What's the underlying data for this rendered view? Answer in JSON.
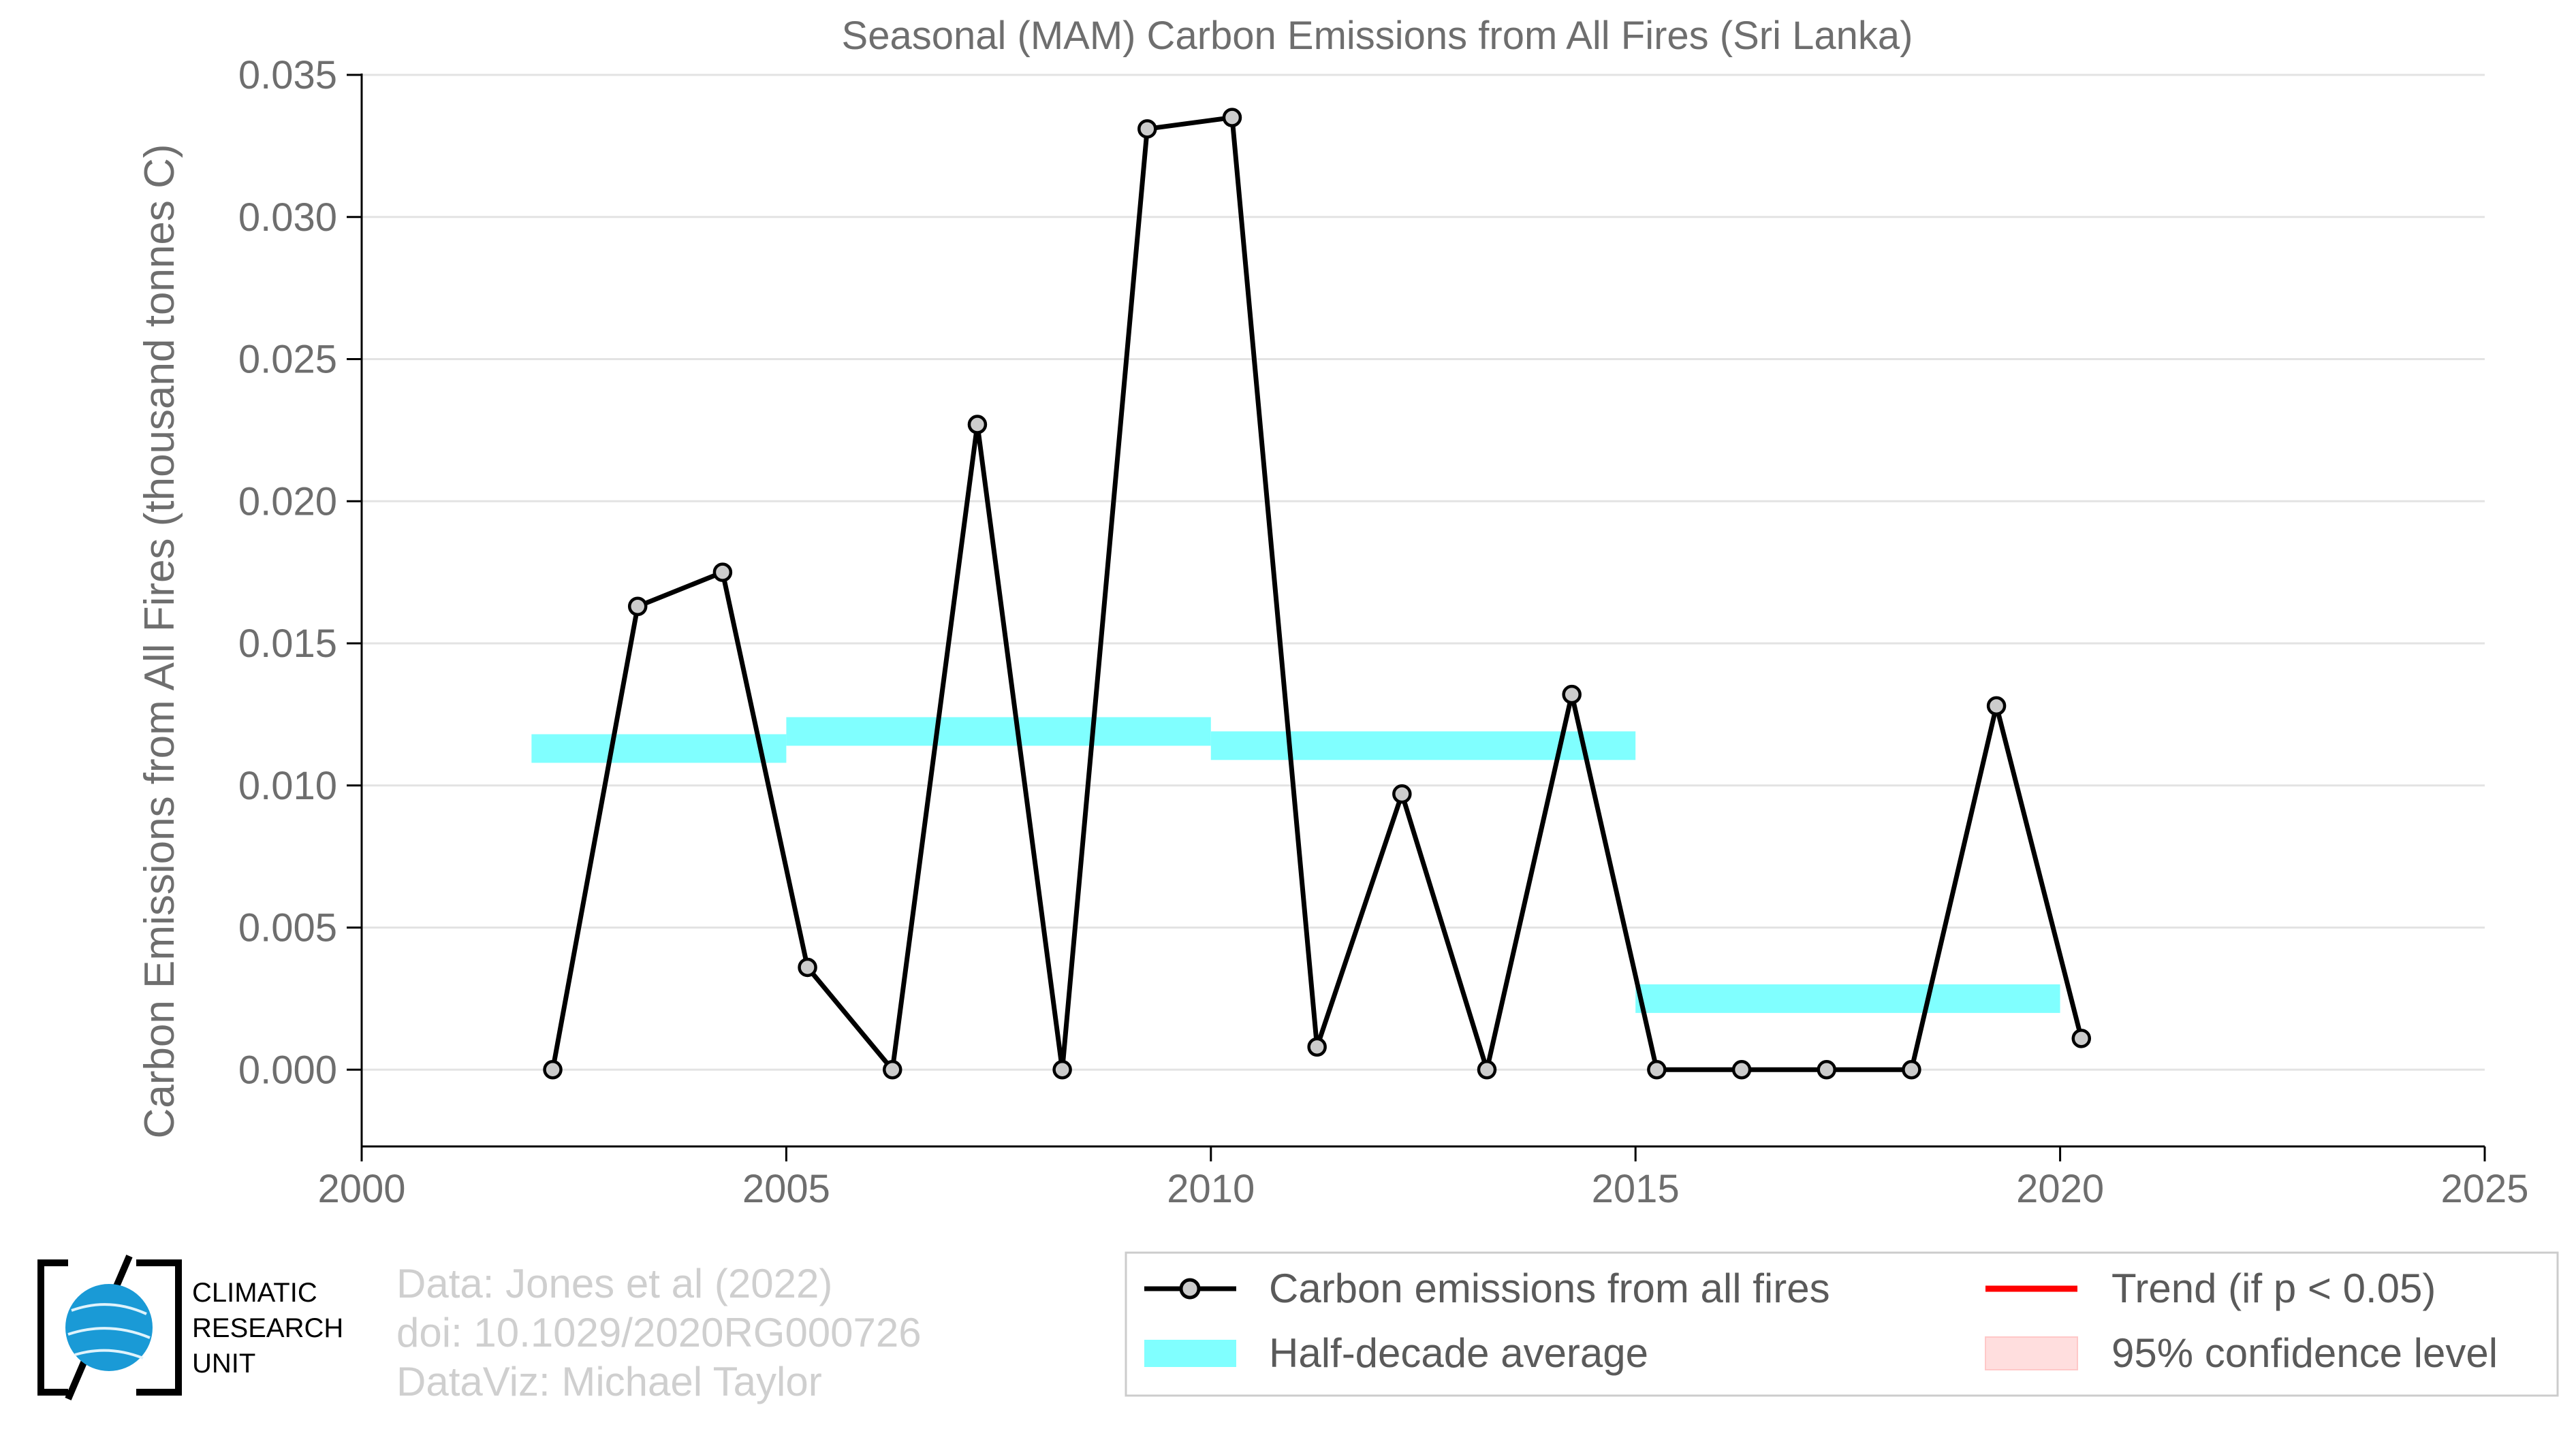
{
  "chart_data": {
    "type": "line",
    "title": "Seasonal (MAM) Carbon Emissions from All Fires (Sri Lanka)",
    "xlabel": "",
    "ylabel": "Carbon Emissions from All Fires (thousand tonnes C)",
    "xlim": [
      2000,
      2025
    ],
    "ylim": [
      -0.0027,
      0.035
    ],
    "x_ticks": [
      "2000",
      "2005",
      "2010",
      "2015",
      "2020",
      "2025"
    ],
    "y_ticks": [
      "0.000",
      "0.005",
      "0.010",
      "0.015",
      "0.020",
      "0.025",
      "0.030",
      "0.035"
    ],
    "grid": "horizontal",
    "series": [
      {
        "name": "Carbon emissions from all fires",
        "color": "#000000",
        "x": [
          2002.25,
          2003.25,
          2004.25,
          2005.25,
          2006.25,
          2007.25,
          2008.25,
          2009.25,
          2010.25,
          2011.25,
          2012.25,
          2013.25,
          2014.25,
          2015.25,
          2016.25,
          2017.25,
          2018.25,
          2019.25,
          2020.25
        ],
        "y": [
          0.0,
          0.0163,
          0.0175,
          0.0036,
          0.0,
          0.0227,
          0.0,
          0.0331,
          0.0335,
          0.0008,
          0.0097,
          0.0,
          0.0132,
          0.0,
          0.0,
          0.0,
          0.0,
          0.0128,
          0.0011
        ]
      }
    ],
    "half_decade_average": {
      "name": "Half-decade average",
      "color": "#80ffff",
      "segments": [
        {
          "x0": 2002,
          "x1": 2005,
          "y": 0.0113
        },
        {
          "x0": 2005,
          "x1": 2010,
          "y": 0.0119
        },
        {
          "x0": 2010,
          "x1": 2015,
          "y": 0.0114
        },
        {
          "x0": 2015,
          "x1": 2020,
          "y": 0.0025
        }
      ]
    },
    "legend": {
      "placement": "bottom-right",
      "items": [
        {
          "label": "Carbon emissions from all fires",
          "icon": "line-marker",
          "color": "#000000"
        },
        {
          "label": "Trend (if p < 0.05)",
          "icon": "line",
          "color": "#ff0000"
        },
        {
          "label": "Half-decade average",
          "icon": "band",
          "color": "#80ffff"
        },
        {
          "label": "95% confidence level",
          "icon": "box",
          "color": "#ffdede"
        }
      ]
    }
  },
  "credits": {
    "line1": "Data: Jones et al (2022)",
    "line2": "doi: 10.1029/2020RG000726",
    "line3": "DataViz: Michael Taylor"
  },
  "logo": {
    "line1": "CLIMATIC",
    "line2": "RESEARCH",
    "line3": "UNIT",
    "color": "#1a9ad6"
  }
}
